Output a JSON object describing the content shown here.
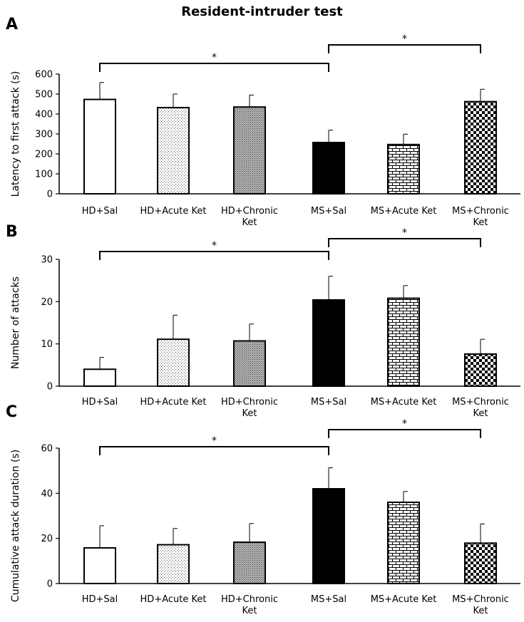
{
  "figure_title": "Resident-intruder test",
  "chart_data": [
    {
      "type": "bar",
      "panel_label": "A",
      "title": "",
      "ylabel": "Latency to first attack (s)",
      "xlabel": "",
      "ylim": [
        0,
        600
      ],
      "yticks": [
        0,
        100,
        200,
        300,
        400,
        500,
        600
      ],
      "categories": [
        "HD+Sal",
        "HD+Acute Ket",
        "HD+Chronic Ket",
        "MS+Sal",
        "MS+Acute Ket",
        "MS+Chronic Ket"
      ],
      "category_lines": [
        [
          "HD+Sal"
        ],
        [
          "HD+Acute Ket"
        ],
        [
          "HD+Chronic",
          "Ket"
        ],
        [
          "MS+Sal"
        ],
        [
          "MS+Acute Ket"
        ],
        [
          "MS+Chronic",
          "Ket"
        ]
      ],
      "values": [
        473,
        432,
        435,
        257,
        247,
        462
      ],
      "errors": [
        85,
        68,
        60,
        62,
        52,
        62
      ],
      "significance": [
        {
          "from": 0,
          "to": 3,
          "label": "*"
        },
        {
          "from": 3,
          "to": 5,
          "label": "*"
        }
      ]
    },
    {
      "type": "bar",
      "panel_label": "B",
      "title": "",
      "ylabel": "Number of attacks",
      "xlabel": "",
      "ylim": [
        0,
        30
      ],
      "yticks": [
        0,
        10,
        20,
        30
      ],
      "categories": [
        "HD+Sal",
        "HD+Acute Ket",
        "HD+Chronic Ket",
        "MS+Sal",
        "MS+Acute Ket",
        "MS+Chronic Ket"
      ],
      "category_lines": [
        [
          "HD+Sal"
        ],
        [
          "HD+Acute Ket"
        ],
        [
          "HD+Chronic",
          "Ket"
        ],
        [
          "MS+Sal"
        ],
        [
          "MS+Acute Ket"
        ],
        [
          "MS+Chronic",
          "Ket"
        ]
      ],
      "values": [
        4.0,
        11.1,
        10.7,
        20.4,
        20.8,
        7.6
      ],
      "errors": [
        2.8,
        5.7,
        4.0,
        5.6,
        3.0,
        3.5
      ],
      "significance": [
        {
          "from": 0,
          "to": 3,
          "label": "*"
        },
        {
          "from": 3,
          "to": 5,
          "label": "*"
        }
      ]
    },
    {
      "type": "bar",
      "panel_label": "C",
      "title": "",
      "ylabel": "Cumulative attack duration (s)",
      "xlabel": "",
      "ylim": [
        0,
        60
      ],
      "yticks": [
        0,
        20,
        40,
        60
      ],
      "categories": [
        "HD+Sal",
        "HD+Acute Ket",
        "HD+Chronic Ket",
        "MS+Sal",
        "MS+Acute Ket",
        "MS+Chronic Ket"
      ],
      "category_lines": [
        [
          "HD+Sal"
        ],
        [
          "HD+Acute Ket"
        ],
        [
          "HD+Chronic",
          "Ket"
        ],
        [
          "MS+Sal"
        ],
        [
          "MS+Acute Ket"
        ],
        [
          "MS+Chronic",
          "Ket"
        ]
      ],
      "values": [
        15.8,
        17.2,
        18.3,
        42.0,
        36.0,
        17.9
      ],
      "errors": [
        9.8,
        7.2,
        8.3,
        9.3,
        4.8,
        8.5
      ],
      "significance": [
        {
          "from": 0,
          "to": 3,
          "label": "*"
        },
        {
          "from": 3,
          "to": 5,
          "label": "*"
        }
      ]
    }
  ]
}
